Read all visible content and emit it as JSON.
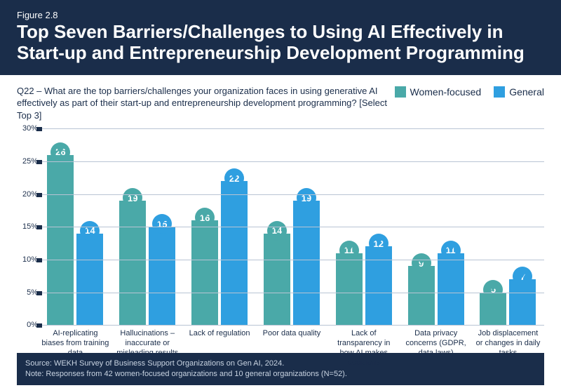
{
  "header": {
    "kicker": "Figure 2.8",
    "title": "Top Seven Barriers/Challenges to Using AI Effectively in Start-up and Entrepreneurship Development Programming"
  },
  "sub_question": "Q22 – What are the top barriers/challenges your organization faces in using generative AI effectively as part of their start-up and entrepreneurship development programming? [Select Top 3]",
  "legend": {
    "series_a": "Women-focused",
    "series_b": "General",
    "color_a": "#4aa9a8",
    "color_b": "#2f9fe0"
  },
  "chart": {
    "type": "bar",
    "ylim": [
      0,
      30
    ],
    "ytick_step": 5,
    "label_color": "#1a2d4a",
    "grid_color": "#b8c4d4",
    "categories": [
      "AI-replicating biases from training data",
      "Hallucinations – inaccurate or misleading results",
      "Lack of regulation",
      "Poor data quality",
      "Lack of transparency in how AI makes decisions",
      "Data privacy concerns (GDPR, data laws)",
      "Job displacement or changes in daily tasks"
    ],
    "groups": [
      {
        "a": 26,
        "b": 14
      },
      {
        "a": 19,
        "b": 15
      },
      {
        "a": 16,
        "b": 22
      },
      {
        "a": 14,
        "b": 19
      },
      {
        "a": 11,
        "b": 12
      },
      {
        "a": 9,
        "b": 11
      },
      {
        "a": 5,
        "b": 7
      }
    ]
  },
  "footer": "Source: WEKH Survey of Business Support Organizations on Gen AI, 2024.\nNote: Responses from 42 women-focused organizations and 10 general organizations (N=52)."
}
